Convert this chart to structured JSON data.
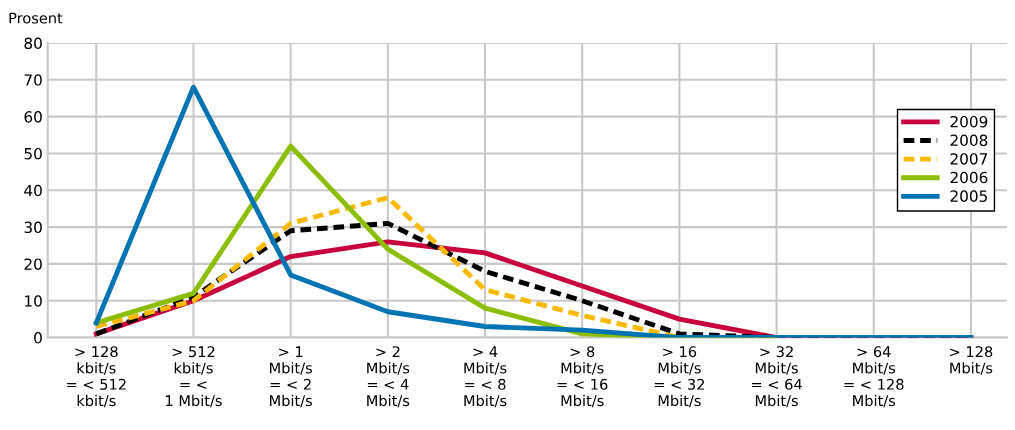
{
  "chart_data": {
    "type": "line",
    "ylabel": "Prosent",
    "categories": [
      "> 128\nkbit/s\n= < 512\nkbit/s",
      "> 512\nkbit/s\n= <\n1 Mbit/s",
      "> 1\nMbit/s\n= < 2\nMbit/s",
      "> 2\nMbit/s\n= < 4\nMbit/s",
      "> 4\nMbit/s\n= < 8\nMbit/s",
      "> 8\nMbit/s\n= < 16\nMbit/s",
      "> 16\nMbit/s\n= < 32\nMbit/s",
      "> 32\nMbit/s\n= < 64\nMbit/s",
      "> 64\nMbit/s\n= < 128\nMbit/s",
      "> 128\nMbit/s"
    ],
    "series": [
      {
        "name": "2009",
        "color": "#c8003c",
        "line_style": "solid",
        "values": [
          1,
          10,
          22,
          26,
          23,
          14,
          5,
          0,
          0,
          0
        ]
      },
      {
        "name": "2008",
        "color": "#000000",
        "line_style": "dashed",
        "values": [
          1,
          11,
          29,
          31,
          18,
          10,
          1,
          0,
          0,
          0
        ]
      },
      {
        "name": "2007",
        "color": "#fbb900",
        "line_style": "dashed",
        "values": [
          3,
          10,
          31,
          38,
          13,
          6,
          0,
          0,
          null,
          null
        ]
      },
      {
        "name": "2006",
        "color": "#8cbe00",
        "line_style": "solid",
        "values": [
          4,
          12,
          52,
          24,
          8,
          1,
          0,
          0,
          null,
          null
        ]
      },
      {
        "name": "2005",
        "color": "#0073b4",
        "line_style": "solid",
        "values": [
          4,
          68,
          17,
          7,
          3,
          2,
          0,
          0,
          0,
          0
        ]
      }
    ],
    "ylim": [
      0,
      80
    ],
    "yticks": [
      0,
      10,
      20,
      30,
      40,
      50,
      60,
      70,
      80
    ],
    "grid": true,
    "legend": "top right",
    "marker": "none"
  }
}
